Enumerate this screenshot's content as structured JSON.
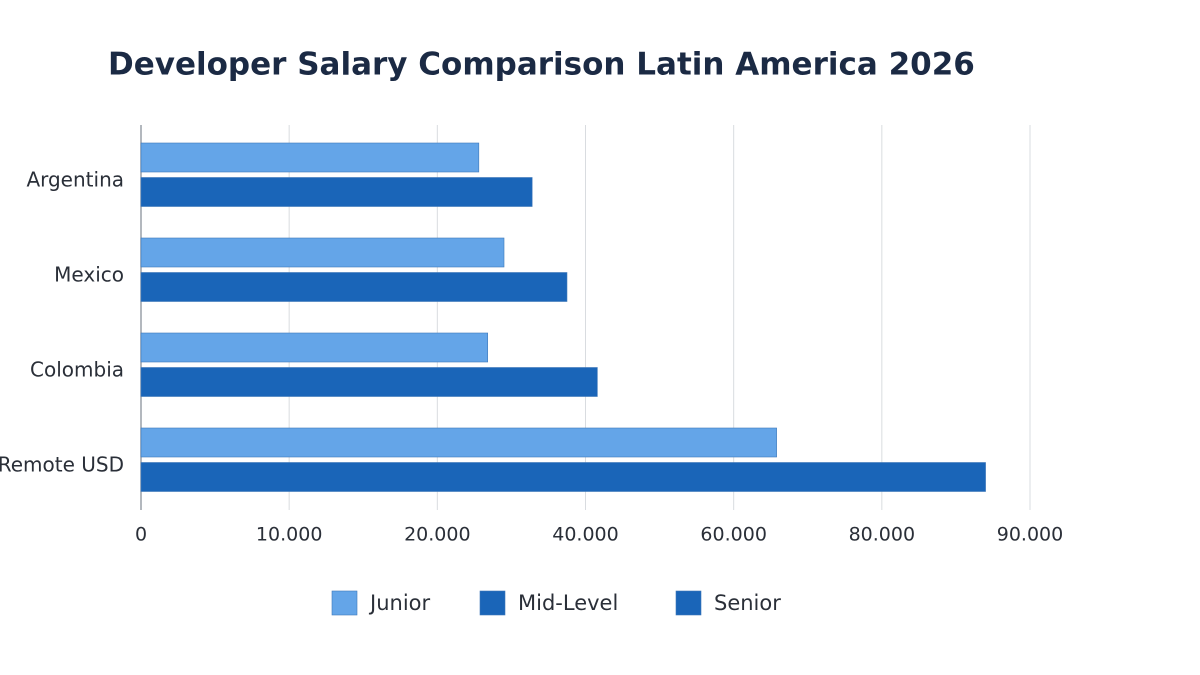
{
  "chart_data": {
    "type": "bar",
    "orientation": "horizontal",
    "title": "Developer Salary Comparison Latin America 2026",
    "categories": [
      "Argentina",
      "Mexico",
      "Colombia",
      "Remote USD"
    ],
    "series": [
      {
        "name": "Junior",
        "color": "#64a5e8",
        "values": [
          25600,
          29000,
          26800,
          65800
        ]
      },
      {
        "name": "Mid-Level",
        "color": "#1a65b8",
        "values": [
          32800,
          37500,
          41600,
          87000
        ]
      },
      {
        "name": "Senior",
        "color": "#1a65b8",
        "values": [
          null,
          null,
          null,
          null
        ]
      }
    ],
    "xlim": [
      0,
      90000
    ],
    "xticks": [
      0,
      {
        "value": 10000,
        "label": "10.000"
      },
      {
        "value": 20000,
        "label": "20.000"
      },
      {
        "value": 40000,
        "label": "40.000"
      },
      {
        "value": 60000,
        "label": "60.000"
      },
      {
        "value": 80000,
        "label": "80.000"
      },
      {
        "value": 90000,
        "label": "90.000"
      }
    ],
    "grid": true
  }
}
